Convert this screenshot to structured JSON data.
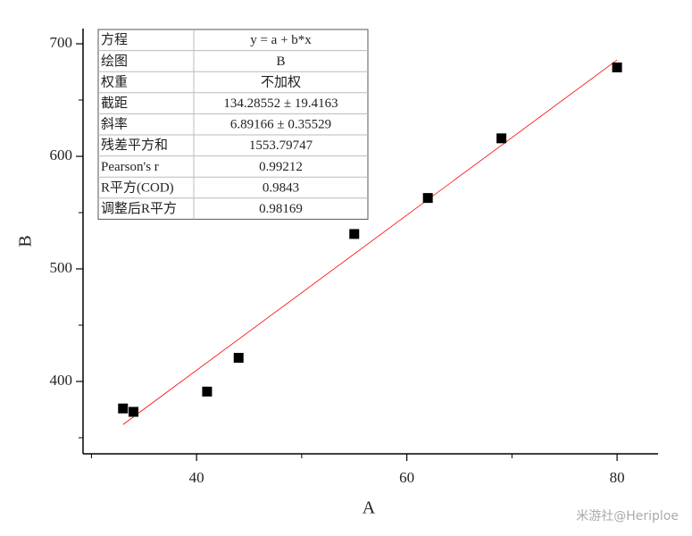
{
  "chart_data": {
    "type": "scatter",
    "x_label": "A",
    "y_label": "B",
    "x": [
      33,
      34,
      41,
      44,
      55,
      62,
      69,
      80
    ],
    "values": [
      376,
      373,
      391,
      421,
      531,
      563,
      616,
      679
    ],
    "color": "#000000",
    "fit": {
      "x": [
        33,
        80
      ],
      "y": [
        361.7,
        685.6
      ],
      "color": "#ff0000"
    },
    "xlim": [
      29.2,
      83.9
    ],
    "xticks": [
      40,
      60,
      80
    ],
    "xminor": [
      30,
      50,
      70
    ],
    "ylim": [
      335.7,
      713.5
    ],
    "yticks": [
      400,
      500,
      600,
      700
    ],
    "yminor": [
      350,
      450,
      550,
      650
    ],
    "table": [
      [
        "方程",
        "y = a + b*x"
      ],
      [
        "绘图",
        "B"
      ],
      [
        "权重",
        "不加权"
      ],
      [
        "截距",
        "134.28552 ± 19.4163"
      ],
      [
        "斜率",
        "6.89166 ± 0.35529"
      ],
      [
        "残差平方和",
        "1553.79747"
      ],
      [
        "Pearson's r",
        "0.99212"
      ],
      [
        "R平方(COD)",
        "0.9843"
      ],
      [
        "调整后R平方",
        "0.98169"
      ]
    ],
    "watermark": "米游社@Heriploe"
  }
}
